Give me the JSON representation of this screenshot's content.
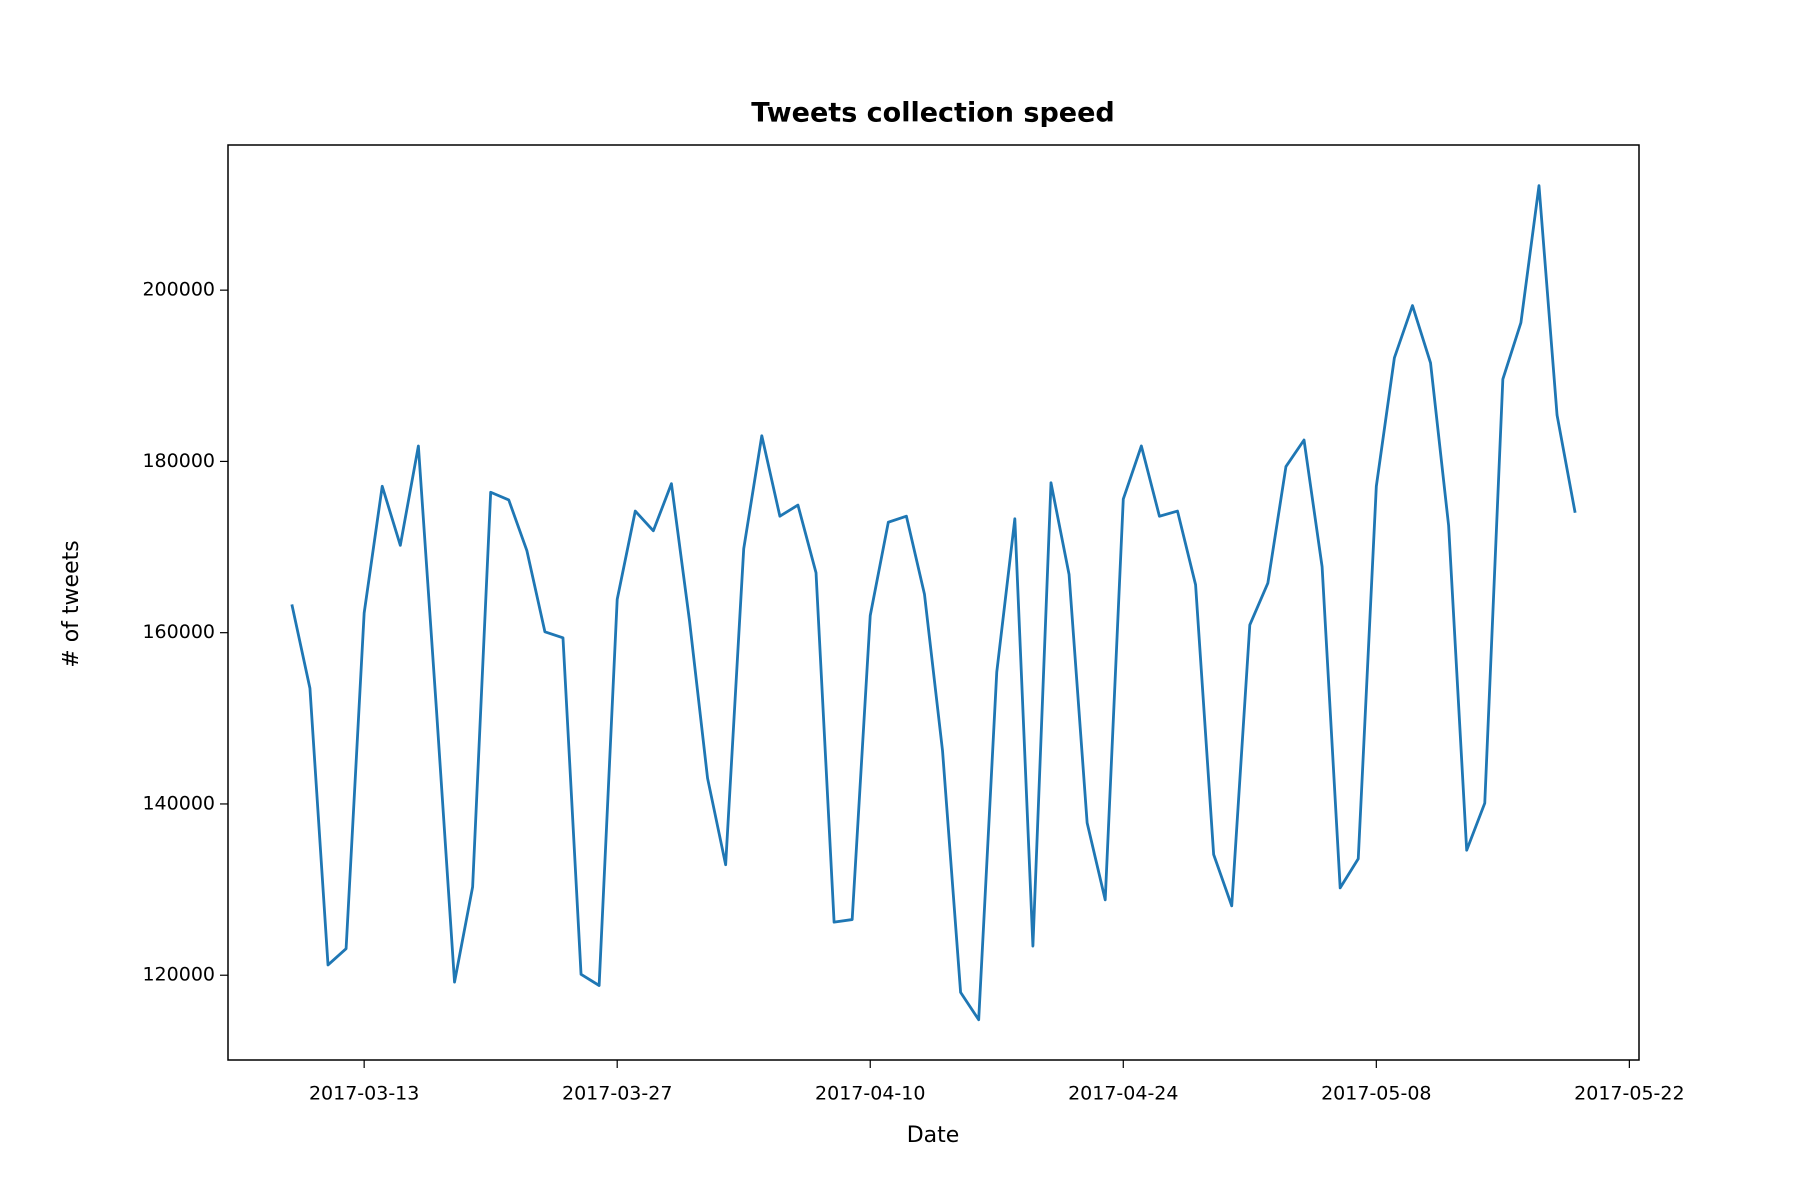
{
  "chart_data": {
    "type": "line",
    "title": "Tweets collection speed",
    "x_label": "Date",
    "y_label": "# of tweets",
    "x": [
      "2017-03-09",
      "2017-03-10",
      "2017-03-11",
      "2017-03-12",
      "2017-03-13",
      "2017-03-14",
      "2017-03-15",
      "2017-03-16",
      "2017-03-17",
      "2017-03-18",
      "2017-03-19",
      "2017-03-20",
      "2017-03-21",
      "2017-03-22",
      "2017-03-23",
      "2017-03-24",
      "2017-03-25",
      "2017-03-26",
      "2017-03-27",
      "2017-03-28",
      "2017-03-29",
      "2017-03-30",
      "2017-03-31",
      "2017-04-01",
      "2017-04-02",
      "2017-04-03",
      "2017-04-04",
      "2017-04-05",
      "2017-04-06",
      "2017-04-07",
      "2017-04-08",
      "2017-04-09",
      "2017-04-10",
      "2017-04-11",
      "2017-04-12",
      "2017-04-13",
      "2017-04-14",
      "2017-04-15",
      "2017-04-16",
      "2017-04-17",
      "2017-04-18",
      "2017-04-19",
      "2017-04-20",
      "2017-04-21",
      "2017-04-22",
      "2017-04-23",
      "2017-04-24",
      "2017-04-25",
      "2017-04-26",
      "2017-04-27",
      "2017-04-28",
      "2017-04-29",
      "2017-04-30",
      "2017-05-01",
      "2017-05-02",
      "2017-05-03",
      "2017-05-04",
      "2017-05-05",
      "2017-05-06",
      "2017-05-07",
      "2017-05-08",
      "2017-05-09",
      "2017-05-10",
      "2017-05-11",
      "2017-05-12",
      "2017-05-13",
      "2017-05-14",
      "2017-05-15",
      "2017-05-16",
      "2017-05-17",
      "2017-05-18",
      "2017-05-19"
    ],
    "series": [
      {
        "name": "tweets",
        "color": "#1f77b4",
        "values": [
          163300,
          153500,
          121200,
          123100,
          162300,
          177100,
          170200,
          181800,
          151000,
          119200,
          130300,
          176400,
          175500,
          169600,
          160100,
          159400,
          120100,
          118800,
          163900,
          174200,
          171900,
          177400,
          161400,
          143000,
          132900,
          169800,
          183000,
          173600,
          174900,
          167000,
          126200,
          126500,
          162000,
          172900,
          173600,
          164500,
          146200,
          118000,
          114800,
          155400,
          173300,
          123400,
          177500,
          166800,
          137800,
          128800,
          175600,
          181800,
          173600,
          174200,
          165600,
          134100,
          128100,
          160900,
          165800,
          179400,
          182500,
          167700,
          130200,
          133600,
          177100,
          192100,
          198200,
          191500,
          172500,
          134600,
          140100,
          189600,
          196200,
          212200,
          185400,
          174000
        ]
      }
    ],
    "xlim": [
      "2017-03-05T11:12",
      "2017-05-22T12:48"
    ],
    "xticks": [
      "2017-03-13",
      "2017-03-27",
      "2017-04-10",
      "2017-04-24",
      "2017-05-08",
      "2017-05-22"
    ],
    "ylim": [
      110100,
      216950
    ],
    "yticks": [
      120000,
      140000,
      160000,
      180000,
      200000
    ]
  }
}
